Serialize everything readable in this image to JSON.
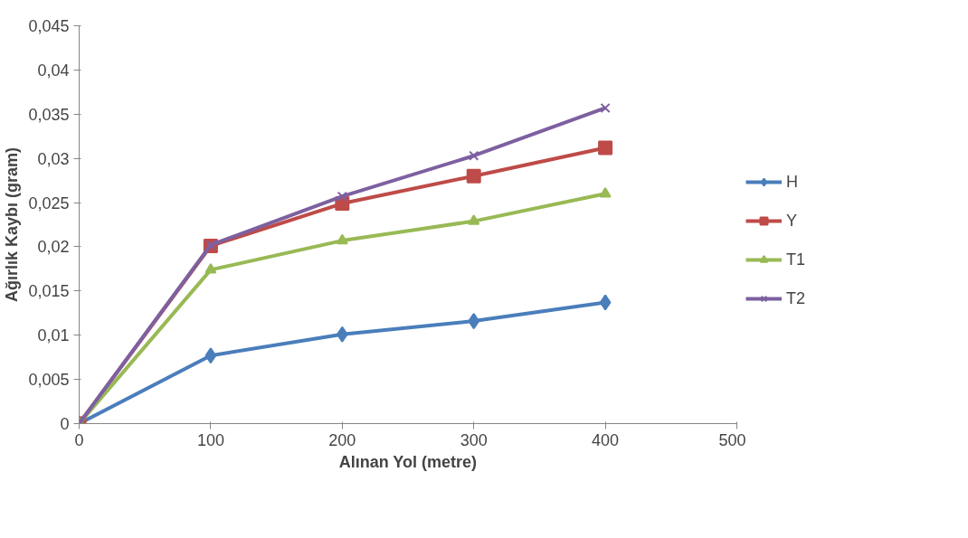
{
  "chart_data": {
    "type": "line",
    "xlabel": "Alınan Yol (metre)",
    "ylabel": "Ağırlık Kaybı (gram)",
    "x": [
      0,
      100,
      200,
      300,
      400
    ],
    "series": [
      {
        "name": "H",
        "color": "#4a7ebb",
        "marker": "diamond",
        "values": [
          0,
          0.0077,
          0.0101,
          0.0116,
          0.0137
        ]
      },
      {
        "name": "Y",
        "color": "#be4b48",
        "marker": "square",
        "values": [
          0,
          0.0201,
          0.0249,
          0.028,
          0.0312
        ]
      },
      {
        "name": "T1",
        "color": "#98b954",
        "marker": "triangle",
        "values": [
          0,
          0.0174,
          0.0207,
          0.0229,
          0.026
        ]
      },
      {
        "name": "T2",
        "color": "#7d60a0",
        "marker": "cross",
        "values": [
          0,
          0.0202,
          0.0257,
          0.0303,
          0.0357
        ]
      }
    ],
    "xlim": [
      0,
      500
    ],
    "xticks": [
      0,
      100,
      200,
      300,
      400,
      500
    ],
    "ylim": [
      0,
      0.045
    ],
    "yticks": [
      0,
      {
        "value": 0.005,
        "label": "0,005"
      },
      {
        "value": 0.01,
        "label": "0,01"
      },
      {
        "value": 0.015,
        "label": "0,015"
      },
      {
        "value": 0.02,
        "label": "0,02"
      },
      {
        "value": 0.025,
        "label": "0,025"
      },
      {
        "value": 0.03,
        "label": "0,03"
      },
      {
        "value": 0.035,
        "label": "0,035"
      },
      {
        "value": 0.04,
        "label": "0,04"
      },
      {
        "value": 0.045,
        "label": "0,045"
      }
    ],
    "grid": false,
    "legend": "right",
    "line_style": "solid"
  }
}
